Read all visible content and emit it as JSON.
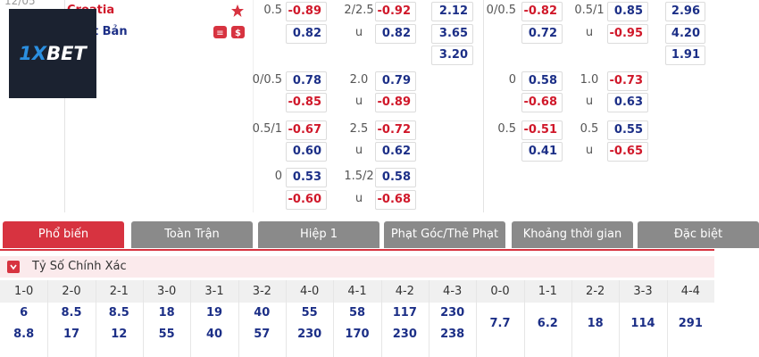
{
  "match": {
    "date": "12/05",
    "home": "Croatia",
    "away": "Nhật Bản"
  },
  "logo": {
    "mark": "1X",
    "name": "BET"
  },
  "odds": [
    {
      "left": {
        "line": "0.5",
        "odds": "-0.89",
        "ou": "2/2.5",
        "ou_odds": "-0.92",
        "x12": "2.12"
      },
      "right": {
        "line": "0/0.5",
        "odds": "-0.82",
        "ou": "0.5/1",
        "ou_odds": "0.85",
        "x12": "2.96"
      }
    },
    {
      "left": {
        "odds": "0.82",
        "ou": "u",
        "ou_odds": "0.82",
        "x12": "3.65"
      },
      "right": {
        "odds": "0.72",
        "ou": "u",
        "ou_odds": "-0.95",
        "x12": "4.20"
      }
    },
    {
      "left": {
        "x12": "3.20"
      },
      "right": {
        "x12": "1.91"
      }
    },
    {
      "left": {
        "line": "0/0.5",
        "odds": "0.78",
        "ou": "2.0",
        "ou_odds": "0.79"
      },
      "right": {
        "line": "0",
        "odds": "0.58",
        "ou": "1.0",
        "ou_odds": "-0.73"
      }
    },
    {
      "left": {
        "odds": "-0.85",
        "ou": "u",
        "ou_odds": "-0.89"
      },
      "right": {
        "odds": "-0.68",
        "ou": "u",
        "ou_odds": "0.63"
      }
    },
    {
      "left": {
        "line": "0.5/1",
        "odds": "-0.67",
        "ou": "2.5",
        "ou_odds": "-0.72"
      },
      "right": {
        "line": "0.5",
        "odds": "-0.51",
        "ou": "0.5",
        "ou_odds": "0.55"
      }
    },
    {
      "left": {
        "odds": "0.60",
        "ou": "u",
        "ou_odds": "0.62"
      },
      "right": {
        "odds": "0.41",
        "ou": "u",
        "ou_odds": "-0.65"
      }
    },
    {
      "left": {
        "line": "0",
        "odds": "0.53",
        "ou": "1.5/2",
        "ou_odds": "0.58"
      },
      "right": {}
    },
    {
      "left": {
        "odds": "-0.60",
        "ou": "u",
        "ou_odds": "-0.68"
      },
      "right": {}
    }
  ],
  "tabs": [
    "Phổ biến",
    "Toàn Trận",
    "Hiệp 1",
    "Phạt Góc/Thẻ Phạt",
    "Khoảng thời gian",
    "Đặc biệt"
  ],
  "section": "Tỷ Số Chính Xác",
  "scores": [
    {
      "label": "1-0",
      "home": "6",
      "away": "8.8"
    },
    {
      "label": "2-0",
      "home": "8.5",
      "away": "17"
    },
    {
      "label": "2-1",
      "home": "8.5",
      "away": "12"
    },
    {
      "label": "3-0",
      "home": "18",
      "away": "55"
    },
    {
      "label": "3-1",
      "home": "19",
      "away": "40"
    },
    {
      "label": "3-2",
      "home": "40",
      "away": "57"
    },
    {
      "label": "4-0",
      "home": "55",
      "away": "230"
    },
    {
      "label": "4-1",
      "home": "58",
      "away": "170"
    },
    {
      "label": "4-2",
      "home": "117",
      "away": "230"
    },
    {
      "label": "4-3",
      "home": "230",
      "away": "238"
    },
    {
      "label": "0-0",
      "draw": "7.7"
    },
    {
      "label": "1-1",
      "draw": "6.2"
    },
    {
      "label": "2-2",
      "draw": "18"
    },
    {
      "label": "3-3",
      "draw": "114"
    },
    {
      "label": "4-4",
      "draw": "291"
    }
  ]
}
